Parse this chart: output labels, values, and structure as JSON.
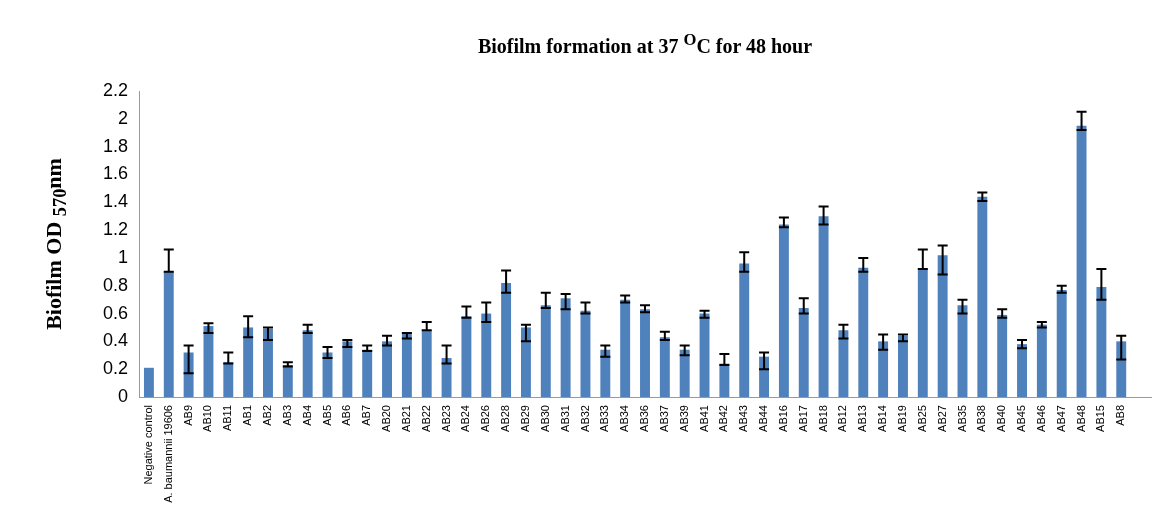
{
  "chart_data": {
    "type": "bar",
    "title": "Biofilm formation at 37 $^{O}$C for 48 hour",
    "ylabel": "Biofilm OD $_{570}$nm",
    "categories": [
      "Negative control",
      "A. baumannii 19606",
      "AB9",
      "AB10",
      "AB11",
      "AB1",
      "AB2",
      "AB3",
      "AB4",
      "AB5",
      "AB6",
      "AB7",
      "AB20",
      "AB21",
      "AB22",
      "AB23",
      "AB24",
      "AB26",
      "AB28",
      "AB29",
      "AB30",
      "AB31",
      "AB32",
      "AB33",
      "AB34",
      "AB36",
      "AB37",
      "AB39",
      "AB41",
      "AB42",
      "AB43",
      "AB44",
      "AB16",
      "AB17",
      "AB18",
      "AB12",
      "AB13",
      "AB14",
      "AB19",
      "AB25",
      "AB27",
      "AB35",
      "AB38",
      "AB40",
      "AB45",
      "AB46",
      "AB47",
      "AB48",
      "AB15",
      "AB8",
      null
    ],
    "values": [
      0.21,
      0.9,
      0.32,
      0.51,
      0.25,
      0.5,
      0.49,
      0.23,
      0.48,
      0.32,
      0.4,
      0.34,
      0.4,
      0.46,
      0.48,
      0.28,
      0.58,
      0.6,
      0.82,
      0.5,
      0.66,
      0.71,
      0.62,
      0.34,
      0.7,
      0.63,
      0.43,
      0.34,
      0.6,
      0.24,
      0.96,
      0.29,
      1.24,
      0.64,
      1.3,
      0.48,
      0.93,
      0.4,
      0.44,
      0.92,
      1.02,
      0.66,
      1.44,
      0.59,
      0.38,
      0.52,
      0.77,
      1.95,
      0.79,
      0.4,
      null
    ],
    "errors": [
      null,
      [
        0.9,
        1.06
      ],
      [
        0.17,
        0.37
      ],
      [
        0.46,
        0.53
      ],
      [
        0.24,
        0.32
      ],
      [
        0.43,
        0.58
      ],
      [
        0.41,
        0.5
      ],
      [
        0.22,
        0.25
      ],
      [
        0.46,
        0.52
      ],
      [
        0.28,
        0.36
      ],
      [
        0.36,
        0.41
      ],
      [
        0.33,
        0.37
      ],
      [
        0.37,
        0.44
      ],
      [
        0.42,
        0.46
      ],
      [
        0.48,
        0.54
      ],
      [
        0.24,
        0.37
      ],
      [
        0.57,
        0.65
      ],
      [
        0.54,
        0.68
      ],
      [
        0.75,
        0.91
      ],
      [
        0.4,
        0.52
      ],
      [
        0.64,
        0.75
      ],
      [
        0.63,
        0.74
      ],
      [
        0.6,
        0.68
      ],
      [
        0.29,
        0.37
      ],
      [
        0.68,
        0.73
      ],
      [
        0.61,
        0.66
      ],
      [
        0.41,
        0.47
      ],
      [
        0.3,
        0.37
      ],
      [
        0.57,
        0.62
      ],
      [
        0.23,
        0.31
      ],
      [
        0.9,
        1.04
      ],
      [
        0.2,
        0.32
      ],
      [
        1.22,
        1.29
      ],
      [
        0.6,
        0.71
      ],
      [
        1.24,
        1.37
      ],
      [
        0.42,
        0.52
      ],
      [
        0.9,
        1
      ],
      [
        0.34,
        0.45
      ],
      [
        0.4,
        0.45
      ],
      [
        0.92,
        1.06
      ],
      [
        0.88,
        1.09
      ],
      [
        0.6,
        0.7
      ],
      [
        1.41,
        1.47
      ],
      [
        0.57,
        0.63
      ],
      [
        0.35,
        0.41
      ],
      [
        0.5,
        0.54
      ],
      [
        0.75,
        0.8
      ],
      [
        1.92,
        2.05
      ],
      [
        0.7,
        0.92
      ],
      [
        0.27,
        0.44
      ],
      null
    ],
    "color": "#4f81bd",
    "ylim": [
      0,
      2.2
    ],
    "yticks": [
      0,
      0.2,
      0.4,
      0.6,
      0.8,
      1,
      1.2,
      1.4,
      1.6,
      1.8,
      2,
      2.2
    ],
    "grid": false,
    "legend": false
  }
}
